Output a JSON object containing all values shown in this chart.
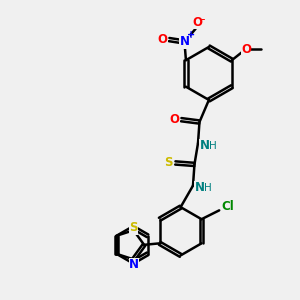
{
  "bg_color": "#f0f0f0",
  "bond_color": "#000000",
  "bond_width": 1.8,
  "atom_colors": {
    "O_red": "#ff0000",
    "N_blue": "#0000ff",
    "S_yellow": "#ccbb00",
    "Cl_green": "#008800",
    "N_teal": "#008080"
  },
  "font_size": 8.5,
  "fig_width": 3.0,
  "fig_height": 3.0,
  "xlim": [
    0,
    10
  ],
  "ylim": [
    0,
    10
  ]
}
